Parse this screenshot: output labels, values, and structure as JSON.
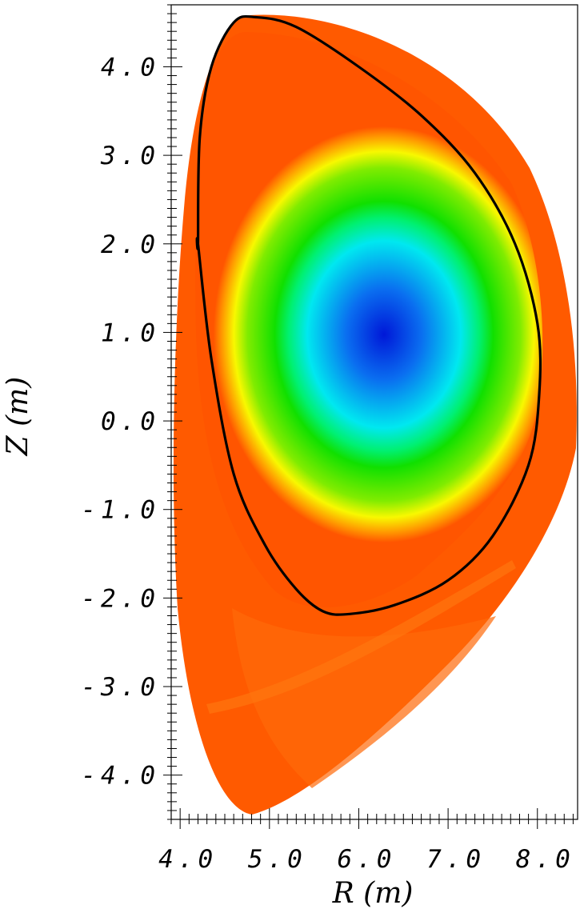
{
  "chart_data": {
    "type": "heatmap",
    "title": "",
    "xlabel": "R (m)",
    "ylabel": "Z (m)",
    "xlim": [
      3.9,
      8.45
    ],
    "ylim": [
      -4.5,
      4.7
    ],
    "x_ticks": [
      "4.0",
      "5.0",
      "6.0",
      "7.0",
      "8.0"
    ],
    "y_ticks": [
      "4.0",
      "3.0",
      "2.0",
      "1.0",
      "0.0",
      "-1.0",
      "-2.0",
      "-3.0",
      "-4.0"
    ],
    "grid": false,
    "legend": "none",
    "magnetic_axis": {
      "R": 6.4,
      "Z": 1.0
    },
    "colormap": [
      "#0018d8",
      "#00e8f0",
      "#10e000",
      "#f8f800",
      "#ff5500"
    ],
    "separatrix": {
      "R": [
        4.2,
        4.22,
        4.35,
        4.6,
        4.85,
        5.3,
        6.0,
        6.7,
        7.3,
        7.75,
        8.0,
        8.02,
        7.9,
        7.5,
        7.0,
        6.4,
        5.9,
        5.6,
        5.3,
        4.95,
        4.6,
        4.35,
        4.2
      ],
      "Z": [
        2.0,
        3.2,
        4.0,
        4.5,
        4.56,
        4.45,
        4.0,
        3.45,
        2.8,
        2.0,
        1.1,
        0.3,
        -0.5,
        -1.3,
        -1.8,
        -2.08,
        -2.18,
        -2.15,
        -1.9,
        -1.4,
        -0.6,
        0.7,
        2.0
      ]
    }
  }
}
